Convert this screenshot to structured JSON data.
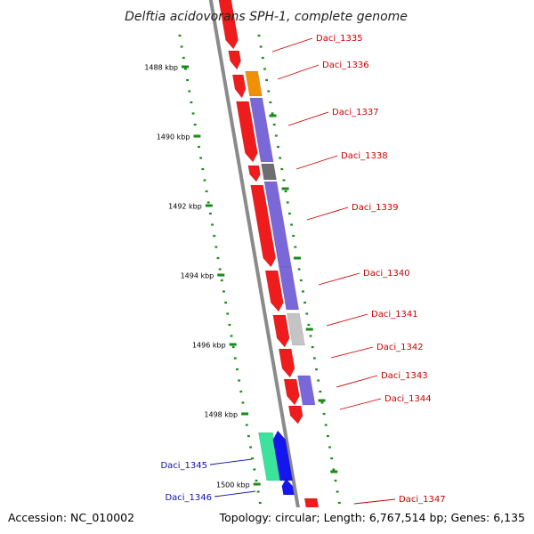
{
  "map": {
    "title": "Delftia acidovorans SPH-1, complete genome",
    "accession": "Accession: NC_010002",
    "topology": "Topology: circular; Length: 6,767,514 bp; Genes: 6,135",
    "ticks": [
      "1488 kbp",
      "1490 kbp",
      "1492 kbp",
      "1494 kbp",
      "1496 kbp",
      "1498 kbp",
      "1500 kbp"
    ],
    "colors": {
      "forward": "#ee1c1c",
      "reverse": "#7b68d8",
      "grey": "#6e6e6e",
      "light_grey": "#c4c4c4",
      "orange": "#f09008",
      "teal": "#3ce39a",
      "blue": "#1515ee",
      "tick": "#1a8a1a",
      "backbone": "#8a8a8a",
      "label_red": "#cc0000",
      "label_blue": "#1010b0"
    },
    "gene_labels": [
      {
        "name": "Daci_1335",
        "color": "#cc0000"
      },
      {
        "name": "Daci_1336",
        "color": "#cc0000"
      },
      {
        "name": "Daci_1337",
        "color": "#cc0000"
      },
      {
        "name": "Daci_1338",
        "color": "#cc0000"
      },
      {
        "name": "Daci_1339",
        "color": "#cc0000"
      },
      {
        "name": "Daci_1340",
        "color": "#cc0000"
      },
      {
        "name": "Daci_1341",
        "color": "#cc0000"
      },
      {
        "name": "Daci_1342",
        "color": "#cc0000"
      },
      {
        "name": "Daci_1343",
        "color": "#cc0000"
      },
      {
        "name": "Daci_1344",
        "color": "#cc0000"
      },
      {
        "name": "Daci_1345",
        "color": "#1010b0"
      },
      {
        "name": "Daci_1346",
        "color": "#1010b0"
      },
      {
        "name": "Daci_1347",
        "color": "#cc0000"
      }
    ]
  }
}
